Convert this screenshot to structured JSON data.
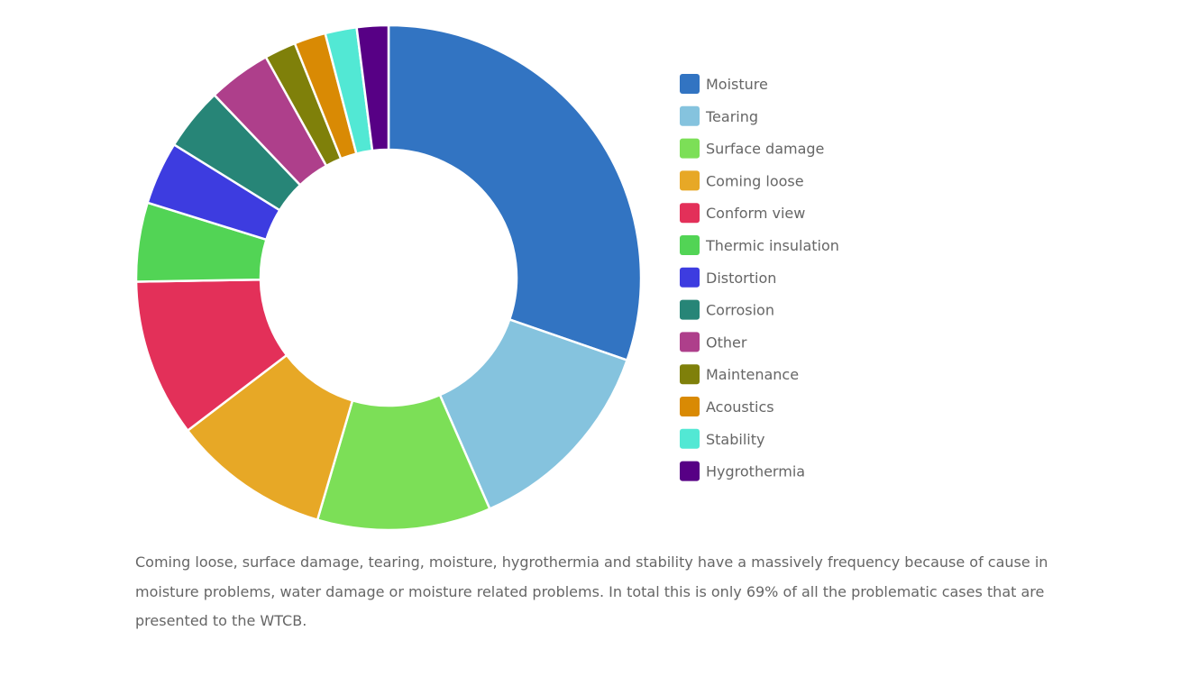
{
  "chart_data": {
    "type": "doughnut",
    "title": "",
    "legend_position": "right",
    "categories": [
      "Moisture",
      "Tearing",
      "Surface damage",
      "Coming loose",
      "Conform view",
      "Thermic insulation",
      "Distortion",
      "Corrosion",
      "Other",
      "Maintenance",
      "Acoustics",
      "Stability",
      "Hygrothermia"
    ],
    "values": [
      30,
      13,
      11,
      10,
      10,
      5,
      4,
      4,
      4,
      2,
      2,
      2,
      2
    ],
    "colors": [
      "#3274c2",
      "#85c3de",
      "#7cdf57",
      "#e7a826",
      "#e33059",
      "#52d455",
      "#3d3ce0",
      "#278577",
      "#ae3f8b",
      "#7f800a",
      "#d98a04",
      "#52e8d4",
      "#570085"
    ]
  },
  "caption": "Coming loose, surface damage, tearing, moisture, hygrothermia and stability have a massively frequency because of cause in moisture problems, water damage or moisture related problems. In total this is only 69% of all the problematic cases that are presented to the WTCB."
}
